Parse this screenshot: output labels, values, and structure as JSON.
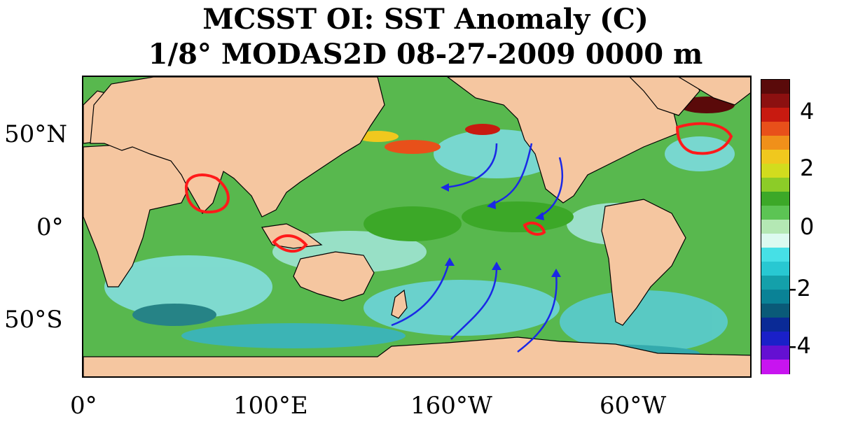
{
  "title": {
    "line1": "MCSST OI:  SST Anomaly (C)",
    "line2": "1/8° MODAS2D 08-27-2009 0000 m"
  },
  "map": {
    "land_color": "#F5C6A0",
    "ocean_color": "#58B84E",
    "latitude_labels": [
      "50°N",
      "0°",
      "50°S"
    ],
    "longitude_labels": [
      "0°",
      "100°E",
      "160°W",
      "60°W"
    ],
    "annotation_colors": {
      "circles": "#FF1A1A",
      "arrows": "#1A28E6"
    }
  },
  "colorbar": {
    "labels": [
      "4",
      "2",
      "0",
      "-2",
      "-4"
    ],
    "colors": [
      "#5A0A0A",
      "#8C1010",
      "#C81A10",
      "#E8501A",
      "#F0901A",
      "#F0C81E",
      "#D2DC1E",
      "#8CCC28",
      "#3CA828",
      "#5CC454",
      "#B4E8B4",
      "#DCFAF0",
      "#46E0E6",
      "#28C8D2",
      "#14A0AA",
      "#0A8296",
      "#0A5A78",
      "#0A2A96",
      "#1A20C8",
      "#6410D2",
      "#C814F0"
    ]
  }
}
